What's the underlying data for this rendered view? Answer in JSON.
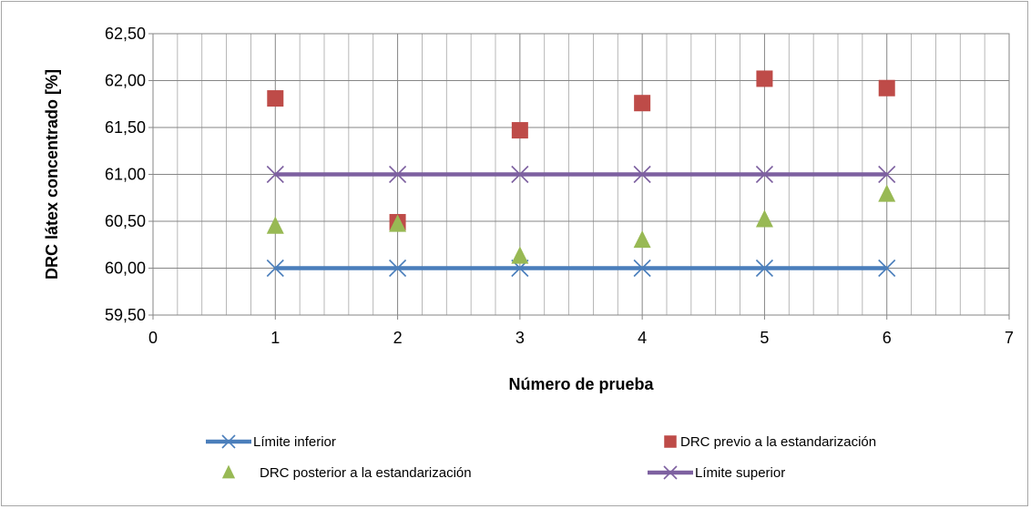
{
  "chart_data": {
    "type": "scatter",
    "title": "",
    "xlabel": "Número de prueba",
    "ylabel": "DRC látex concentrado [%]",
    "xlim": [
      0,
      7
    ],
    "ylim": [
      59.5,
      62.5
    ],
    "x_ticks": [
      "0",
      "1",
      "2",
      "3",
      "4",
      "5",
      "6",
      "7"
    ],
    "y_ticks": [
      "59,50",
      "60,00",
      "60,50",
      "61,00",
      "61,50",
      "62,00",
      "62,50"
    ],
    "grid": true,
    "legend_position": "bottom",
    "series": [
      {
        "name": "Límite inferior",
        "style": "line-x",
        "color": "#4a7ebb",
        "x": [
          1,
          2,
          3,
          4,
          5,
          6
        ],
        "y": [
          60.0,
          60.0,
          60.0,
          60.0,
          60.0,
          60.0
        ]
      },
      {
        "name": "DRC previo a la estandarización",
        "style": "square",
        "color": "#be4b48",
        "x": [
          1,
          2,
          3,
          4,
          5,
          6
        ],
        "y": [
          61.81,
          60.49,
          61.47,
          61.76,
          62.02,
          61.92
        ]
      },
      {
        "name": "DRC posterior a la estandarización",
        "style": "triangle",
        "color": "#98b954",
        "x": [
          1,
          2,
          3,
          4,
          5,
          6
        ],
        "y": [
          60.45,
          60.47,
          60.13,
          60.3,
          60.52,
          60.79
        ]
      },
      {
        "name": "Límite superior",
        "style": "line-x",
        "color": "#7d60a0",
        "x": [
          1,
          2,
          3,
          4,
          5,
          6
        ],
        "y": [
          61.0,
          61.0,
          61.0,
          61.0,
          61.0,
          61.0
        ]
      }
    ]
  }
}
